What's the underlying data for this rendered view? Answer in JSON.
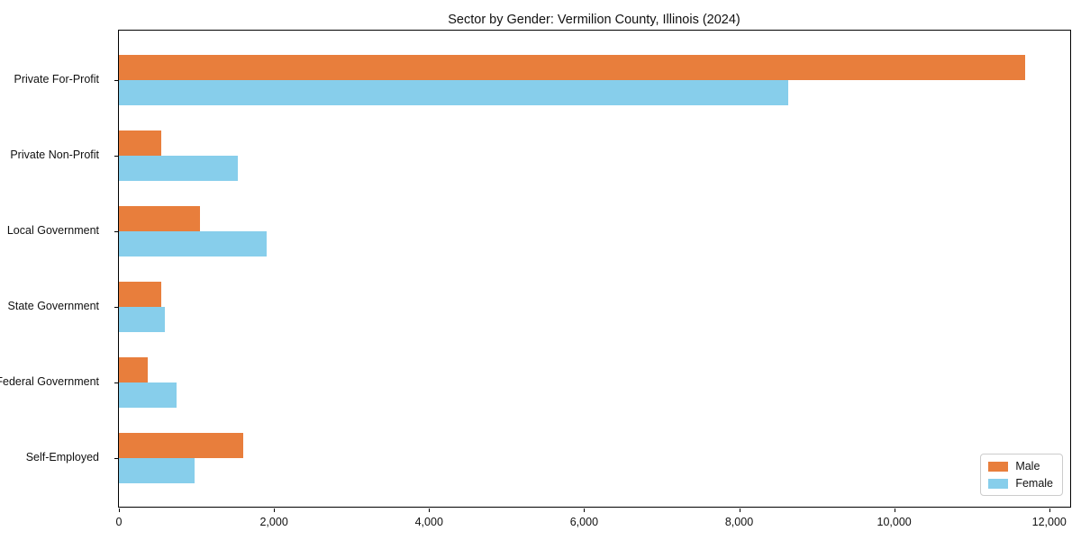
{
  "figure": {
    "title": "Sector by Gender: Vermilion County, Illinois (2024)"
  },
  "chart_data": {
    "type": "bar",
    "orientation": "horizontal",
    "title": "Sector by Gender: Vermilion County, Illinois (2024)",
    "categories": [
      "Private For-Profit",
      "Private Non-Profit",
      "Local Government",
      "State Government",
      "Federal Government",
      "Self-Employed"
    ],
    "series": [
      {
        "name": "Male",
        "color": "#e87e3c",
        "values": [
          11690,
          550,
          1050,
          550,
          370,
          1600
        ]
      },
      {
        "name": "Female",
        "color": "#87ceeb",
        "values": [
          8630,
          1530,
          1900,
          590,
          740,
          970
        ]
      }
    ],
    "xlabel": "",
    "ylabel": "",
    "xlim": [
      0,
      12270
    ],
    "x_ticks": [
      0,
      2000,
      4000,
      6000,
      8000,
      10000,
      12000
    ],
    "x_tick_labels": [
      "0",
      "2,000",
      "4,000",
      "6,000",
      "8,000",
      "10,000",
      "12,000"
    ],
    "grid": false,
    "legend_position": "lower right",
    "plot_border_color": "#000000",
    "background_color": "#ffffff"
  }
}
